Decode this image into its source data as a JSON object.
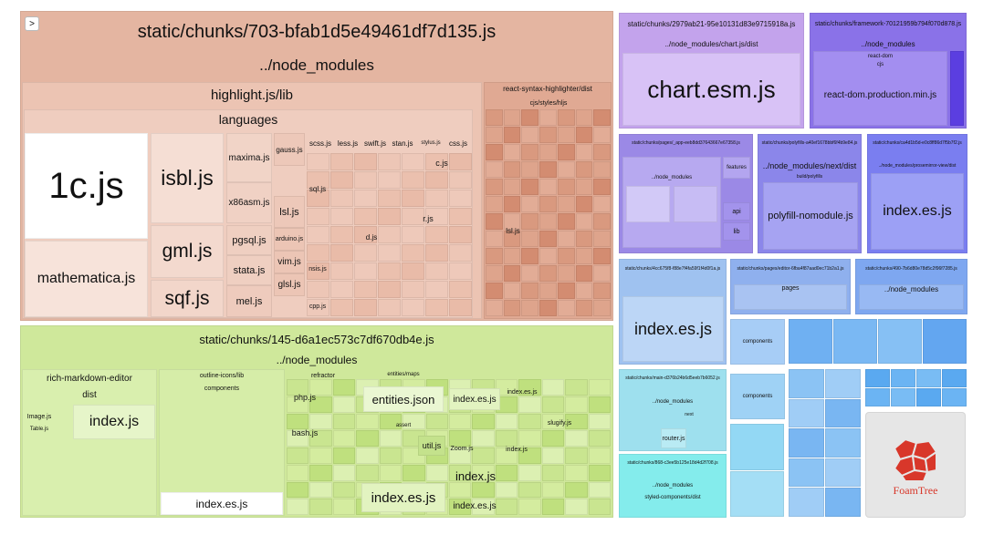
{
  "toggle": ">",
  "orange": {
    "title": "static/chunks/703-bfab1d5e49461df7d135.js",
    "group": "../node_modules",
    "lib": "highlight.js/lib",
    "languages": "languages",
    "files": [
      "1c.js",
      "mathematica.js",
      "isbl.js",
      "gml.js",
      "sqf.js",
      "maxima.js",
      "x86asm.js",
      "pgsql.js",
      "stata.js",
      "mel.js",
      "gauss.js",
      "lsl.js",
      "arduino.js",
      "vim.js",
      "glsl.js",
      "scss.js",
      "less.js",
      "swift.js",
      "stan.js",
      "stylus.js",
      "css.js",
      "c.js",
      "sql.js",
      "r.js",
      "d.js",
      "nsis.js",
      "cpp.js"
    ],
    "rsh": {
      "title": "react-syntax-highlighter/dist",
      "styles": "cjs/styles/hljs",
      "file": "lsl.js"
    }
  },
  "green": {
    "title": "static/chunks/145-d6a1ec573c7df670db4e.js",
    "group": "../node_modules",
    "rme": {
      "title": "rich-markdown-editor",
      "dist": "dist",
      "files": [
        "index.js",
        "Image.js",
        "Table.js"
      ]
    },
    "icons": {
      "title": "outline-icons/lib",
      "components": "components",
      "index": "index.es.js"
    },
    "refractor": {
      "title": "refractor",
      "files": [
        "php.js",
        "bash.js"
      ]
    },
    "entities": {
      "title": "entities/maps",
      "file": "entities.json",
      "assert": "assert"
    },
    "others": [
      "util.js",
      "index.js",
      "index.es.js",
      "index.es.js",
      "index.es.js",
      "index.es.js",
      "Zoom.js",
      "slugify.js",
      "index.js"
    ]
  },
  "right": {
    "chart": {
      "chunk": "static/chunks/2979ab21-95e10131d83e9715918a.js",
      "path": "../node_modules/chart.js/dist",
      "file": "chart.esm.js"
    },
    "framework": {
      "chunk": "static/chunks/framework-70121959b794f070d878.js",
      "group": "../node_modules",
      "pkg": "react-dom",
      "cjs": "cjs",
      "file": "react-dom.production.min.js"
    },
    "app": {
      "chunk": "static/chunks/pages/_app-eeb8dd37643667e67358.js",
      "group": "../node_modules",
      "features": "features",
      "api": "api",
      "lib": "lib"
    },
    "polyfill": {
      "chunk": "static/chunks/polyfills-a40ef1678bbf6f4b9e84.js",
      "path": "../node_modules/next/dist",
      "sub": "build/polyfills",
      "file": "polyfill-nomodule.js"
    },
    "pmview": {
      "chunk": "static/chunks/ca4d1b5d-e0c8ff86d7f5b7f2.js",
      "path": "../node_modules/prosemirror-view/dist",
      "file": "index.es.js"
    },
    "r3a": {
      "chunk": "static/chunks/4cc675f8-f88e7f4fa59f1f4d0f1a.js",
      "file": "index.es.js"
    },
    "editor": {
      "chunk": "static/chunks/pages/editor-6fba4f87aad0ec71b2a1.js",
      "pages": "pages"
    },
    "r3c": {
      "chunk": "static/chunks/490-7b6d80e78d5c2f96f7285.js",
      "group": "../node_modules"
    },
    "main": {
      "chunk": "static/chunks/main-d376b24b6d5eeb7b6052.js",
      "group": "../node_modules",
      "next": "next",
      "file": "router.js"
    },
    "styled": {
      "chunk": "static/chunks/868-c3ee5b125e18d4d2f708.js",
      "group": "../node_modules",
      "path": "styled-components/dist"
    },
    "comps": [
      "components",
      "components"
    ],
    "foam": "FoamTree"
  }
}
